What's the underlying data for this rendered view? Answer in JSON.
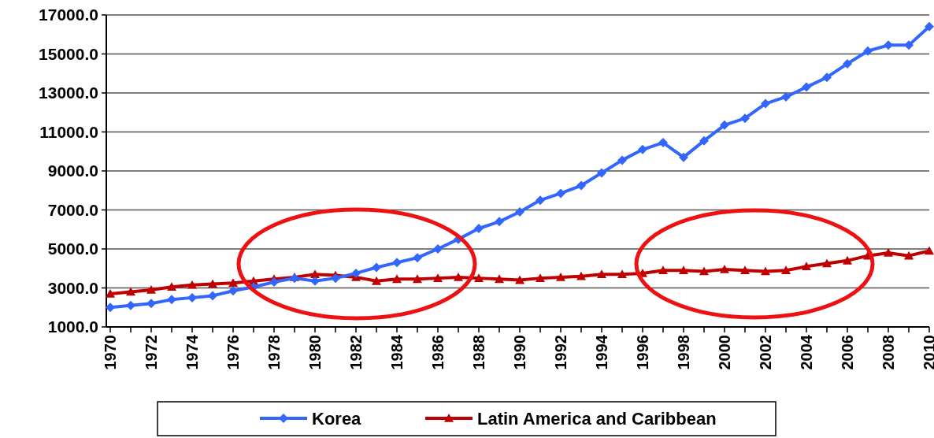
{
  "chart_data": {
    "type": "line",
    "x": [
      1970,
      1971,
      1972,
      1973,
      1974,
      1975,
      1976,
      1977,
      1978,
      1979,
      1980,
      1981,
      1982,
      1983,
      1984,
      1985,
      1986,
      1987,
      1988,
      1989,
      1990,
      1991,
      1992,
      1993,
      1994,
      1995,
      1996,
      1997,
      1998,
      1999,
      2000,
      2001,
      2002,
      2003,
      2004,
      2005,
      2006,
      2007,
      2008,
      2009,
      2010
    ],
    "xlim": [
      1970,
      2010
    ],
    "xticks": [
      1970,
      {
        "value": 1971,
        "label": null
      },
      1972,
      {
        "value": 1973,
        "label": null
      },
      1974,
      {
        "value": 1975,
        "label": null
      },
      1976,
      {
        "value": 1977,
        "label": null
      },
      1978,
      {
        "value": 1979,
        "label": null
      },
      1980,
      {
        "value": 1981,
        "label": null
      },
      1982,
      {
        "value": 1983,
        "label": null
      },
      1984,
      {
        "value": 1985,
        "label": null
      },
      1986,
      {
        "value": 1987,
        "label": null
      },
      1988,
      {
        "value": 1989,
        "label": null
      },
      1990,
      {
        "value": 1991,
        "label": null
      },
      1992,
      {
        "value": 1993,
        "label": null
      },
      1994,
      {
        "value": 1995,
        "label": null
      },
      1996,
      {
        "value": 1997,
        "label": null
      },
      1998,
      {
        "value": 1999,
        "label": null
      },
      2000,
      {
        "value": 2001,
        "label": null
      },
      2002,
      {
        "value": 2003,
        "label": null
      },
      2004,
      {
        "value": 2005,
        "label": null
      },
      2006,
      {
        "value": 2007,
        "label": null
      },
      2008,
      {
        "value": 2009,
        "label": null
      },
      2010
    ],
    "ylim": [
      1000,
      17000
    ],
    "yticks": [
      {
        "value": 1000,
        "label": "1000.0"
      },
      {
        "value": 3000,
        "label": "3000.0"
      },
      {
        "value": 5000,
        "label": "5000.0"
      },
      {
        "value": 7000,
        "label": "7000.0"
      },
      {
        "value": 9000,
        "label": "9000.0"
      },
      {
        "value": 11000,
        "label": "11000.0"
      },
      {
        "value": 13000,
        "label": "13000.0"
      },
      {
        "value": 15000,
        "label": "15000.0"
      },
      {
        "value": 17000,
        "label": "17000.0"
      }
    ],
    "grid": "y",
    "legend": "bottom",
    "line_style": "solid",
    "series": [
      {
        "name": "Korea",
        "color": "#3366ff",
        "marker": "diamond",
        "values": [
          2000,
          2100,
          2200,
          2400,
          2500,
          2600,
          2850,
          3050,
          3300,
          3500,
          3350,
          3500,
          3750,
          4050,
          4300,
          4550,
          5000,
          5500,
          6050,
          6400,
          6900,
          7500,
          7850,
          8250,
          8900,
          9550,
          10100,
          10450,
          9700,
          10550,
          11350,
          11700,
          12450,
          12800,
          13300,
          13800,
          14500,
          15150,
          15450,
          15450,
          16400
        ]
      },
      {
        "name": "Latin America and Caribbean",
        "color": "#c00000",
        "marker": "triangle",
        "values": [
          2700,
          2800,
          2900,
          3050,
          3150,
          3200,
          3250,
          3350,
          3450,
          3550,
          3700,
          3650,
          3550,
          3350,
          3450,
          3450,
          3500,
          3550,
          3500,
          3450,
          3400,
          3500,
          3550,
          3600,
          3700,
          3700,
          3750,
          3900,
          3900,
          3850,
          3950,
          3900,
          3850,
          3900,
          4100,
          4250,
          4400,
          4650,
          4800,
          4650,
          4900
        ]
      }
    ]
  }
}
